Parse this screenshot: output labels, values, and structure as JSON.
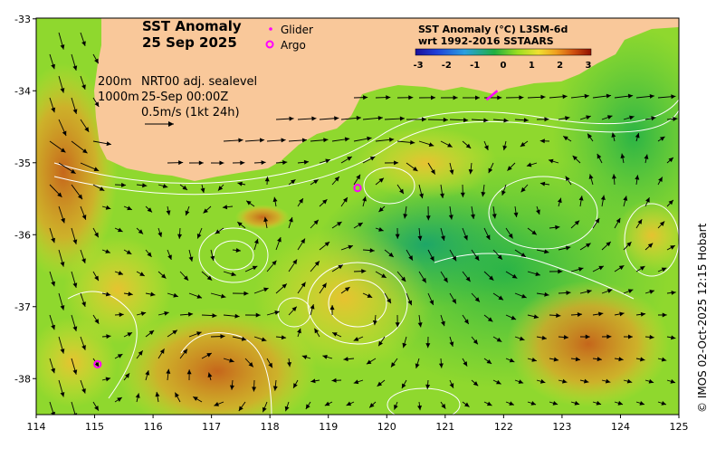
{
  "title": {
    "line1": "SST Anomaly",
    "line2": "25 Sep 2025"
  },
  "legend": {
    "glider": "Glider",
    "argo": "Argo",
    "glider_color": "#ff00ff",
    "argo_color": "#ff00ff"
  },
  "info": {
    "depth1": "200m",
    "depth2": "1000m",
    "product": "NRT00 adj. sealevel",
    "time": "25-Sep 00:00Z",
    "scale": "0.5m/s (1kt 24h)"
  },
  "colorbar": {
    "title1": "SST Anomaly (°C) L3SM-6d",
    "title2": "wrt 1992-2016 SSTAARS",
    "ticks": [
      "-3",
      "-2",
      "-1",
      "0",
      "1",
      "2",
      "3"
    ],
    "values": [
      -3,
      -2,
      -1,
      0,
      1,
      2,
      3
    ],
    "colors": [
      "#1a0f99",
      "#1f3fd9",
      "#2aa0e0",
      "#20b040",
      "#9ade20",
      "#f0e030",
      "#f0a020",
      "#d05010",
      "#901000"
    ]
  },
  "axes": {
    "x_ticks": [
      "114",
      "115",
      "116",
      "117",
      "118",
      "119",
      "120",
      "121",
      "122",
      "123",
      "124",
      "125"
    ],
    "x_values": [
      114,
      115,
      116,
      117,
      118,
      119,
      120,
      121,
      122,
      123,
      124,
      125
    ],
    "y_ticks": [
      "-33",
      "-34",
      "-35",
      "-36",
      "-37",
      "-38"
    ],
    "y_values": [
      -33,
      -34,
      -35,
      -36,
      -37,
      -38
    ],
    "xlim": [
      114,
      125
    ],
    "ylim": [
      -38.5,
      -33
    ]
  },
  "credit": "© IMOS 02-Oct-2025 12:15 Hobart",
  "colors": {
    "land": "#f9c89a",
    "ocean_green": "#33c043",
    "ocean_lightgreen": "#9bdc2a",
    "ocean_yellow": "#e8e232",
    "ocean_orange": "#f0a020",
    "ocean_red": "#c85010",
    "arrow": "#000000",
    "contour": "#ffffff"
  },
  "markers": {
    "argo": [
      {
        "lon": 119.5,
        "lat": -35.35
      },
      {
        "lon": 115.05,
        "lat": -37.8
      }
    ],
    "glider": [
      {
        "lon": 121.8,
        "lat": -34.05
      }
    ]
  }
}
